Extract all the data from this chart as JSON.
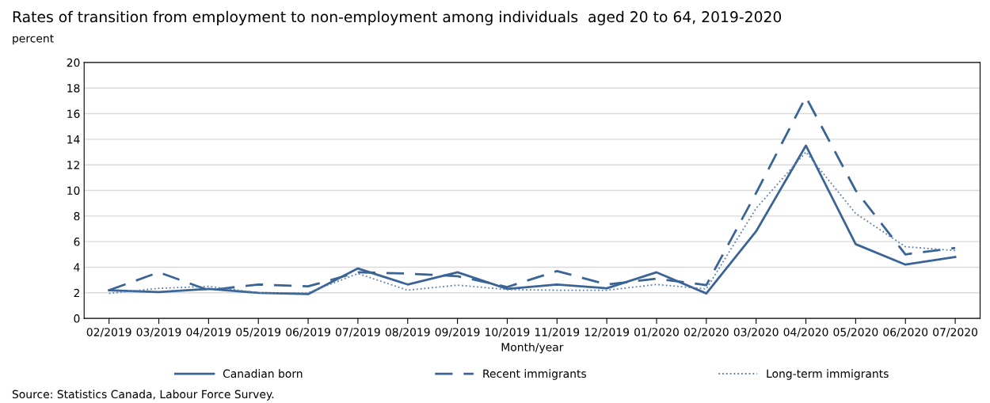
{
  "chart_data": {
    "type": "line",
    "title": "Rates of transition from employment to non-employment among individuals  aged 20 to 64, 2019-2020",
    "ylabel": "percent",
    "xlabel": "Month/year",
    "categories": [
      "02/2019",
      "03/2019",
      "04/2019",
      "05/2019",
      "06/2019",
      "07/2019",
      "08/2019",
      "09/2019",
      "10/2019",
      "11/2019",
      "12/2019",
      "01/2020",
      "02/2020",
      "03/2020",
      "04/2020",
      "05/2020",
      "06/2020",
      "07/2020"
    ],
    "series": [
      {
        "name": "Canadian born",
        "color": "#3b6496",
        "line_style": "solid",
        "values": [
          2.2,
          2.05,
          2.3,
          2.0,
          1.9,
          3.9,
          2.65,
          3.6,
          2.3,
          2.65,
          2.35,
          3.6,
          1.95,
          6.8,
          13.5,
          5.8,
          4.2,
          4.8
        ]
      },
      {
        "name": "Recent immigrants",
        "color": "#3b6496",
        "line_style": "dashed",
        "values": [
          2.2,
          3.6,
          2.2,
          2.65,
          2.5,
          3.6,
          3.5,
          3.3,
          2.45,
          3.7,
          2.65,
          3.1,
          2.6,
          9.8,
          17.3,
          10.0,
          5.0,
          5.5
        ]
      },
      {
        "name": "Long-term immigrants",
        "color": "#5a7fb0",
        "line_style": "dotted",
        "values": [
          1.95,
          2.35,
          2.5,
          2.0,
          2.0,
          3.5,
          2.2,
          2.6,
          2.25,
          2.2,
          2.2,
          2.65,
          2.3,
          8.6,
          13.0,
          8.2,
          5.6,
          5.3
        ]
      }
    ],
    "ylim": [
      0,
      20
    ],
    "yticks": [
      0,
      2,
      4,
      6,
      8,
      10,
      12,
      14,
      16,
      18,
      20
    ],
    "grid": "y",
    "legend": "bottom",
    "marker": "none",
    "annotations": [
      "Source: Statistics Canada, Labour Force Survey."
    ]
  }
}
